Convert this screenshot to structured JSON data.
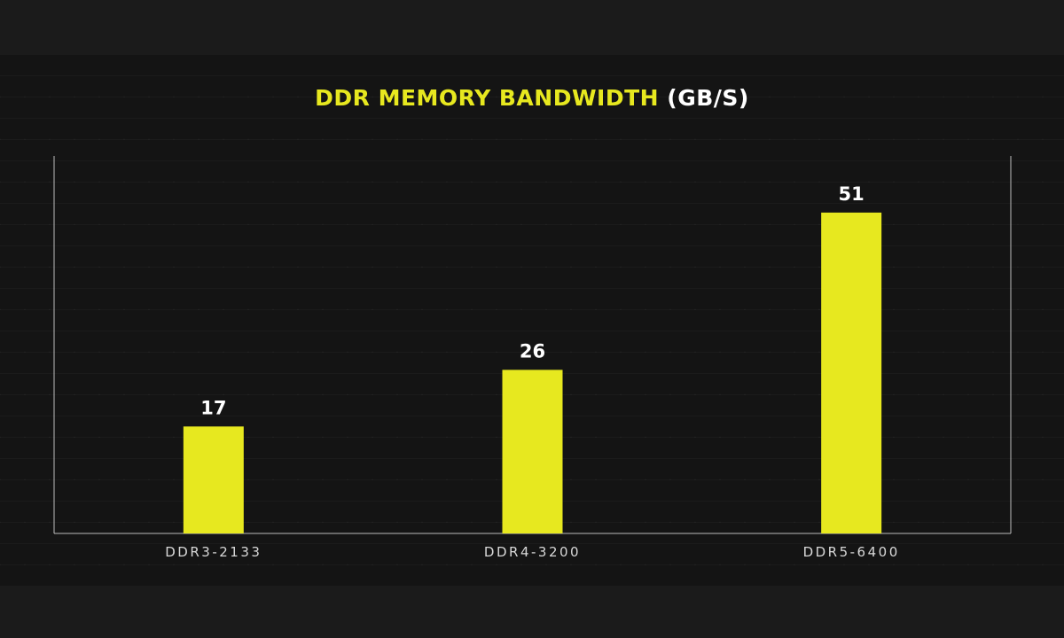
{
  "chart_data": {
    "type": "bar",
    "title": "DDR MEMORY BANDWIDTH",
    "title_unit": "(GB/S)",
    "categories": [
      "DDR3-2133",
      "DDR4-3200",
      "DDR5-6400"
    ],
    "values": [
      17,
      26,
      51
    ],
    "data_labels": [
      "17",
      "26",
      "51"
    ],
    "ylim": [
      0,
      60
    ],
    "xlabel": "",
    "ylabel": "",
    "grid": false,
    "legend": "none",
    "colors": {
      "bar": "#e7e81f",
      "title": "#e7e81f",
      "title_unit": "#ffffff",
      "axis": "#bdbdbd",
      "background": "#141414"
    }
  }
}
